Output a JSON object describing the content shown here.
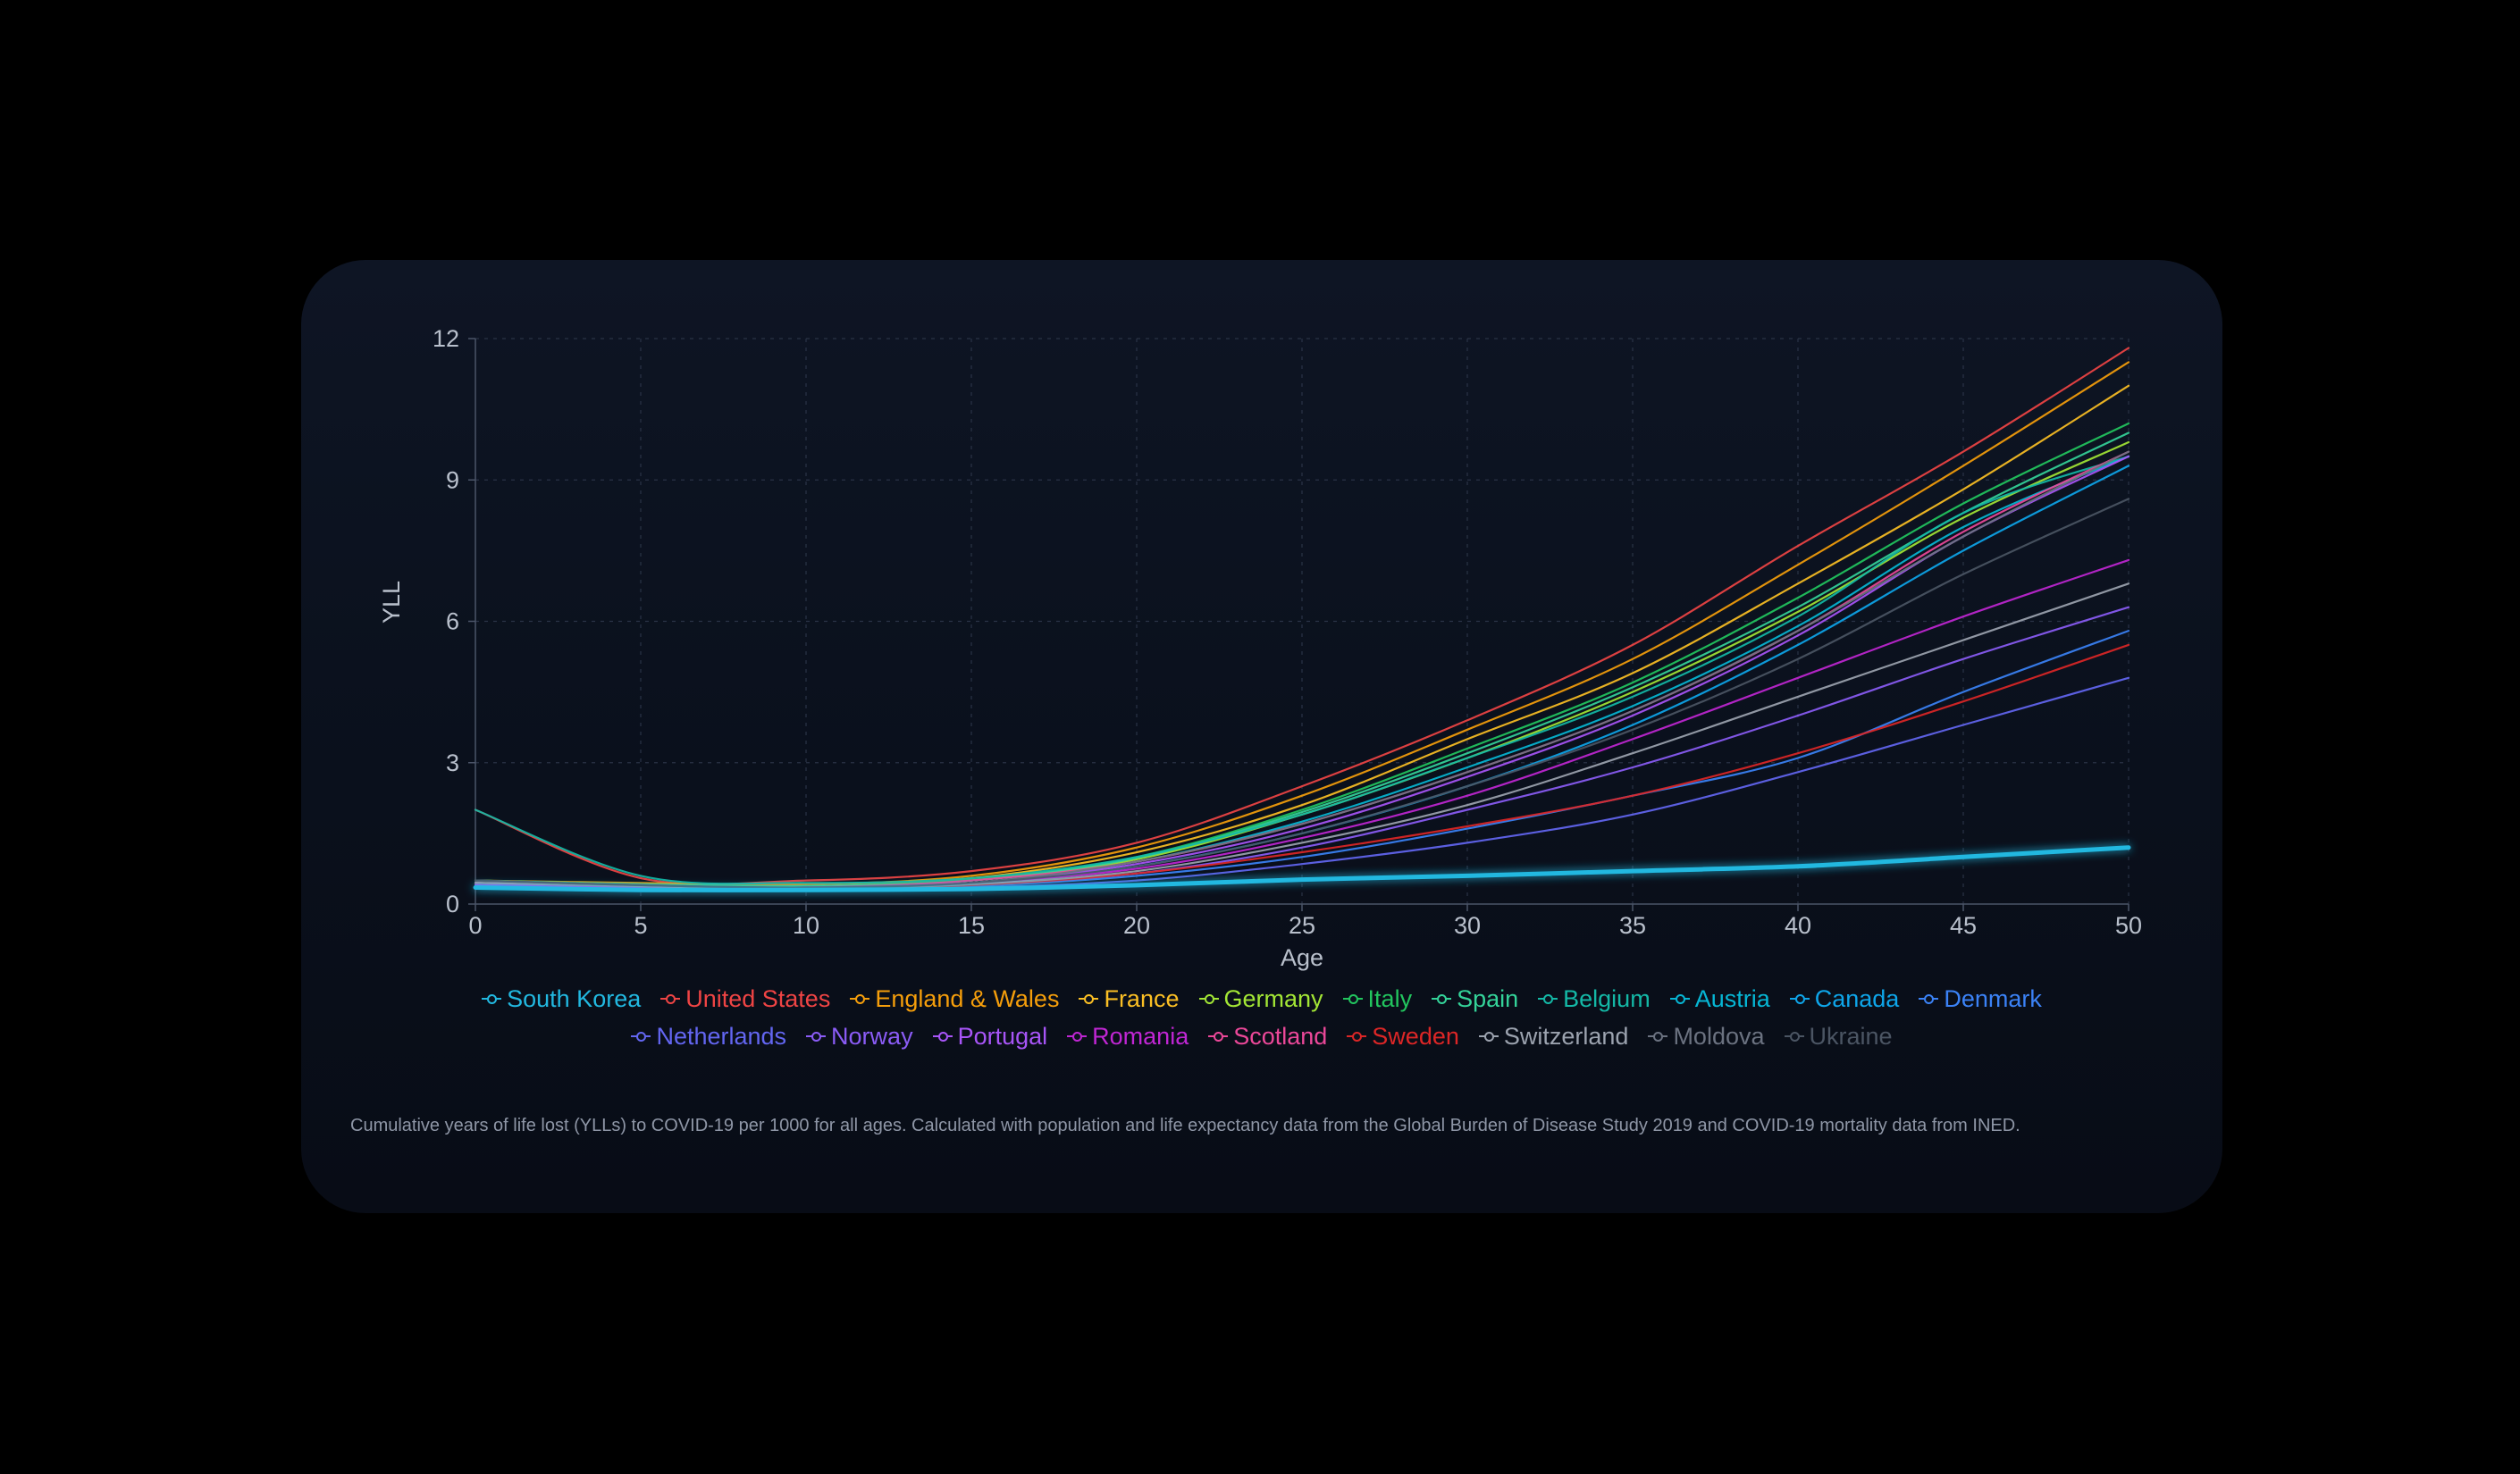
{
  "chart_data": {
    "type": "line",
    "xlabel": "Age",
    "ylabel": "YLL",
    "xlim": [
      0,
      50
    ],
    "ylim": [
      0,
      12
    ],
    "x_ticks": [
      0,
      5,
      10,
      15,
      20,
      25,
      30,
      35,
      40,
      45,
      50
    ],
    "y_ticks": [
      0,
      3,
      6,
      9,
      12
    ],
    "grid": true,
    "legend_position": "bottom",
    "x": [
      0,
      5,
      10,
      15,
      20,
      25,
      30,
      35,
      40,
      45,
      50
    ],
    "series": [
      {
        "name": "South Korea",
        "color": "#22b8e0",
        "values": [
          0.35,
          0.3,
          0.3,
          0.32,
          0.4,
          0.52,
          0.6,
          0.7,
          0.8,
          1.0,
          1.2
        ]
      },
      {
        "name": "United States",
        "color": "#ef4444",
        "values": [
          2.0,
          0.55,
          0.5,
          0.7,
          1.3,
          2.5,
          3.9,
          5.5,
          7.6,
          9.6,
          11.8
        ]
      },
      {
        "name": "England & Wales",
        "color": "#f59e0b",
        "values": [
          0.5,
          0.45,
          0.42,
          0.6,
          1.2,
          2.3,
          3.7,
          5.2,
          7.2,
          9.3,
          11.5
        ]
      },
      {
        "name": "France",
        "color": "#fbbf24",
        "values": [
          0.45,
          0.4,
          0.38,
          0.55,
          1.1,
          2.1,
          3.5,
          4.9,
          6.8,
          8.8,
          11.0
        ]
      },
      {
        "name": "Germany",
        "color": "#a3e635",
        "values": [
          0.45,
          0.4,
          0.36,
          0.5,
          0.95,
          1.9,
          3.1,
          4.5,
          6.2,
          8.2,
          9.8
        ]
      },
      {
        "name": "Italy",
        "color": "#22c55e",
        "values": [
          0.5,
          0.42,
          0.38,
          0.52,
          1.0,
          2.0,
          3.3,
          4.7,
          6.5,
          8.5,
          10.2
        ]
      },
      {
        "name": "Spain",
        "color": "#34d399",
        "values": [
          0.5,
          0.42,
          0.38,
          0.5,
          0.98,
          1.95,
          3.2,
          4.6,
          6.3,
          8.3,
          10.0
        ]
      },
      {
        "name": "Belgium",
        "color": "#14b8a6",
        "values": [
          2.0,
          0.6,
          0.45,
          0.55,
          1.0,
          1.9,
          3.1,
          4.4,
          6.1,
          8.3,
          9.5
        ]
      },
      {
        "name": "Austria",
        "color": "#06b6d4",
        "values": [
          0.45,
          0.38,
          0.35,
          0.45,
          0.9,
          1.75,
          2.9,
          4.2,
          5.9,
          8.0,
          9.5
        ]
      },
      {
        "name": "Canada",
        "color": "#0ea5e9",
        "values": [
          0.4,
          0.35,
          0.32,
          0.42,
          0.8,
          1.5,
          2.5,
          3.8,
          5.5,
          7.5,
          9.3
        ]
      },
      {
        "name": "Denmark",
        "color": "#3b82f6",
        "values": [
          0.4,
          0.35,
          0.3,
          0.38,
          0.6,
          1.0,
          1.6,
          2.3,
          3.1,
          4.5,
          5.8
        ]
      },
      {
        "name": "Netherlands",
        "color": "#6366f1",
        "values": [
          0.4,
          0.32,
          0.3,
          0.35,
          0.5,
          0.85,
          1.3,
          1.9,
          2.8,
          3.8,
          4.8
        ]
      },
      {
        "name": "Norway",
        "color": "#8b5cf6",
        "values": [
          0.4,
          0.35,
          0.32,
          0.4,
          0.65,
          1.2,
          2.0,
          2.9,
          4.0,
          5.2,
          6.3
        ]
      },
      {
        "name": "Portugal",
        "color": "#a855f7",
        "values": [
          0.4,
          0.35,
          0.33,
          0.45,
          0.85,
          1.6,
          2.7,
          4.0,
          5.7,
          7.8,
          9.5
        ]
      },
      {
        "name": "Romania",
        "color": "#c026d3",
        "values": [
          0.45,
          0.38,
          0.35,
          0.45,
          0.75,
          1.4,
          2.3,
          3.5,
          4.8,
          6.1,
          7.3
        ]
      },
      {
        "name": "Scotland",
        "color": "#ec4899",
        "values": [
          0.45,
          0.38,
          0.35,
          0.5,
          0.9,
          1.7,
          2.8,
          4.1,
          5.8,
          7.9,
          9.6
        ]
      },
      {
        "name": "Sweden",
        "color": "#dc2626",
        "values": [
          0.5,
          0.4,
          0.33,
          0.4,
          0.65,
          1.1,
          1.65,
          2.3,
          3.2,
          4.3,
          5.5
        ]
      },
      {
        "name": "Switzerland",
        "color": "#9ca3af",
        "values": [
          0.45,
          0.38,
          0.33,
          0.42,
          0.7,
          1.3,
          2.1,
          3.2,
          4.4,
          5.6,
          6.8
        ]
      },
      {
        "name": "Moldova",
        "color": "#6b7280",
        "values": [
          0.5,
          0.4,
          0.35,
          0.45,
          0.9,
          1.7,
          2.8,
          4.1,
          5.8,
          7.8,
          9.6
        ]
      },
      {
        "name": "Ukraine",
        "color": "#4b5563",
        "values": [
          0.5,
          0.4,
          0.35,
          0.45,
          0.8,
          1.5,
          2.5,
          3.7,
          5.2,
          7.0,
          8.6
        ]
      }
    ]
  },
  "caption": "Cumulative years of life lost (YLLs) to COVID-19 per 1000 for all ages. Calculated with population and life expectancy data from the Global Burden of Disease Study 2019 and COVID-19 mortality data from INED.",
  "highlight_series": "South Korea"
}
